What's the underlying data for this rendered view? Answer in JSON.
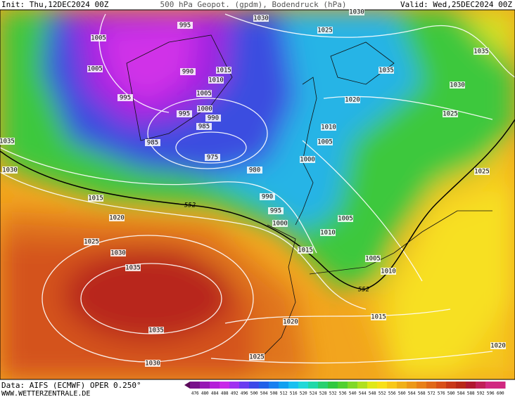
{
  "header": {
    "init": "Init: Thu,12DEC2024 00Z",
    "title": "500 hPa Geopot. (gpdm), Bodendruck (hPa)",
    "valid": "Valid: Wed,25DEC2024 00Z"
  },
  "footer": {
    "data": "Data: AIFS (ECMWF) OPER 0.250°",
    "site": "WWW.WETTERZENTRALE.DE"
  },
  "colorbar": {
    "labels": [
      476,
      480,
      484,
      488,
      492,
      496,
      500,
      504,
      508,
      512,
      516,
      520,
      524,
      528,
      532,
      536,
      540,
      544,
      548,
      552,
      556,
      560,
      564,
      568,
      572,
      576,
      580,
      584,
      588,
      592,
      596,
      600
    ]
  },
  "isobar_labels": [
    1005,
    1005,
    995,
    985,
    995,
    990,
    1015,
    1010,
    1005,
    1000,
    995,
    990,
    985,
    975,
    980,
    990,
    995,
    1000,
    1030,
    1025,
    1030,
    1035,
    1035,
    1030,
    1025,
    1020,
    1010,
    1005,
    1000,
    1025,
    1015,
    1020,
    1025,
    1030,
    1035,
    1035,
    1030,
    1005,
    1010,
    1015,
    1005,
    1010,
    1015,
    1020,
    1025,
    1020,
    1035,
    1030
  ],
  "geopotential_labels": [
    552,
    552
  ]
}
